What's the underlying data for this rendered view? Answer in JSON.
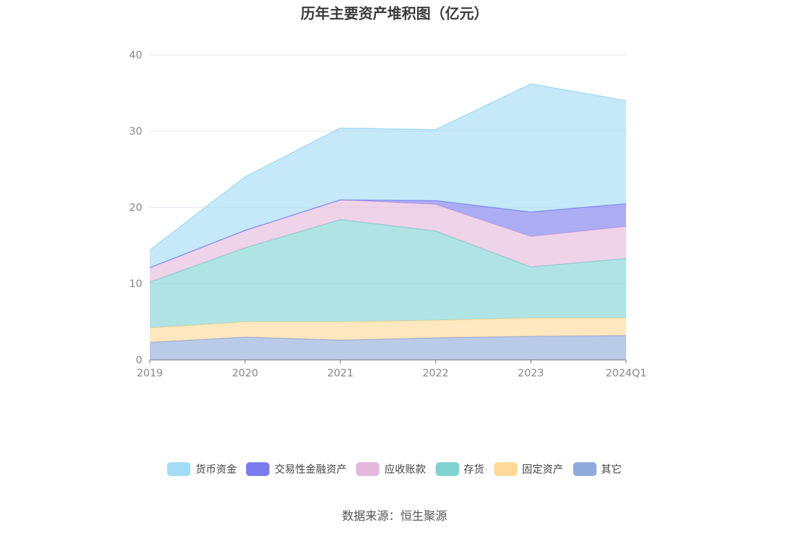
{
  "title": "历年主要资产堆积图（亿元）",
  "source": "数据来源：恒生聚源",
  "chart_data": {
    "type": "area",
    "stacked": true,
    "categories": [
      "2019",
      "2020",
      "2021",
      "2022",
      "2023",
      "2024Q1"
    ],
    "y_ticks": [
      "0",
      "10",
      "20",
      "30",
      "40"
    ],
    "ylim": [
      0,
      40
    ],
    "grid": true,
    "legend_position": "bottom",
    "series": [
      {
        "name": "其它",
        "color": "#8faadc",
        "values": [
          2.3,
          3.0,
          2.6,
          2.9,
          3.1,
          3.2
        ]
      },
      {
        "name": "固定资产",
        "color": "#ffd998",
        "values": [
          1.9,
          2.0,
          2.4,
          2.3,
          2.4,
          2.3
        ]
      },
      {
        "name": "存货",
        "color": "#7fd3d3",
        "values": [
          6.0,
          9.7,
          13.4,
          11.7,
          6.7,
          7.8
        ]
      },
      {
        "name": "应收账款",
        "color": "#e5b8dc",
        "values": [
          1.9,
          2.3,
          2.6,
          3.5,
          4.0,
          4.2
        ]
      },
      {
        "name": "交易性金融资产",
        "color": "#7b7bef",
        "values": [
          0.0,
          0.0,
          0.0,
          0.5,
          3.2,
          3.0
        ]
      },
      {
        "name": "货币资金",
        "color": "#a3dcf6",
        "values": [
          2.3,
          7.0,
          9.4,
          9.3,
          16.8,
          13.5
        ]
      }
    ]
  },
  "legend": [
    {
      "label": "货币资金",
      "color": "#a3dcf6"
    },
    {
      "label": "交易性金融资产",
      "color": "#7b7bef"
    },
    {
      "label": "应收账款",
      "color": "#e5b8dc"
    },
    {
      "label": "存货",
      "color": "#7fd3d3"
    },
    {
      "label": "固定资产",
      "color": "#ffd998"
    },
    {
      "label": "其它",
      "color": "#8faadc"
    }
  ]
}
